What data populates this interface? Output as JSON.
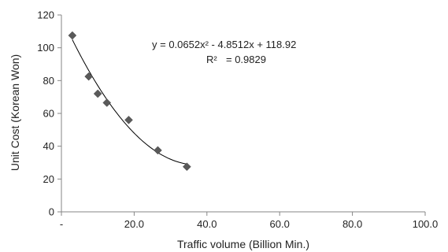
{
  "chart_data": {
    "type": "scatter",
    "title": "",
    "xlabel": "Traffic volume (Billion Min.)",
    "ylabel": "Unit Cost (Korean Won)",
    "xlim": [
      0,
      100
    ],
    "ylim": [
      0,
      120
    ],
    "x_ticks": [
      0,
      20,
      40,
      60,
      80,
      100
    ],
    "x_tick_labels": [
      "-",
      "20.0",
      "40.0",
      "60.0",
      "80.0",
      "100.0"
    ],
    "y_ticks": [
      0,
      20,
      40,
      60,
      80,
      100,
      120
    ],
    "y_tick_labels": [
      "0",
      "20",
      "40",
      "60",
      "80",
      "100",
      "120"
    ],
    "grid": false,
    "legend": "none",
    "marker": "diamond",
    "marker_color": "#5a5a5a",
    "trendline_color": "#000000",
    "points": [
      {
        "x": 3.0,
        "y": 107.5
      },
      {
        "x": 7.5,
        "y": 82.5
      },
      {
        "x": 10.0,
        "y": 72.0
      },
      {
        "x": 12.5,
        "y": 66.5
      },
      {
        "x": 18.5,
        "y": 56.0
      },
      {
        "x": 26.5,
        "y": 37.5
      },
      {
        "x": 34.5,
        "y": 27.5
      }
    ],
    "trendline": {
      "type": "polynomial",
      "coefficients": [
        0.0652,
        -4.8512,
        118.92
      ],
      "x_range": [
        3.0,
        34.5
      ]
    },
    "annotations": {
      "equation": "y = 0.0652x² - 4.8512x + 118.92",
      "r2_label": "R²",
      "r2_value": "= 0.9829"
    }
  }
}
